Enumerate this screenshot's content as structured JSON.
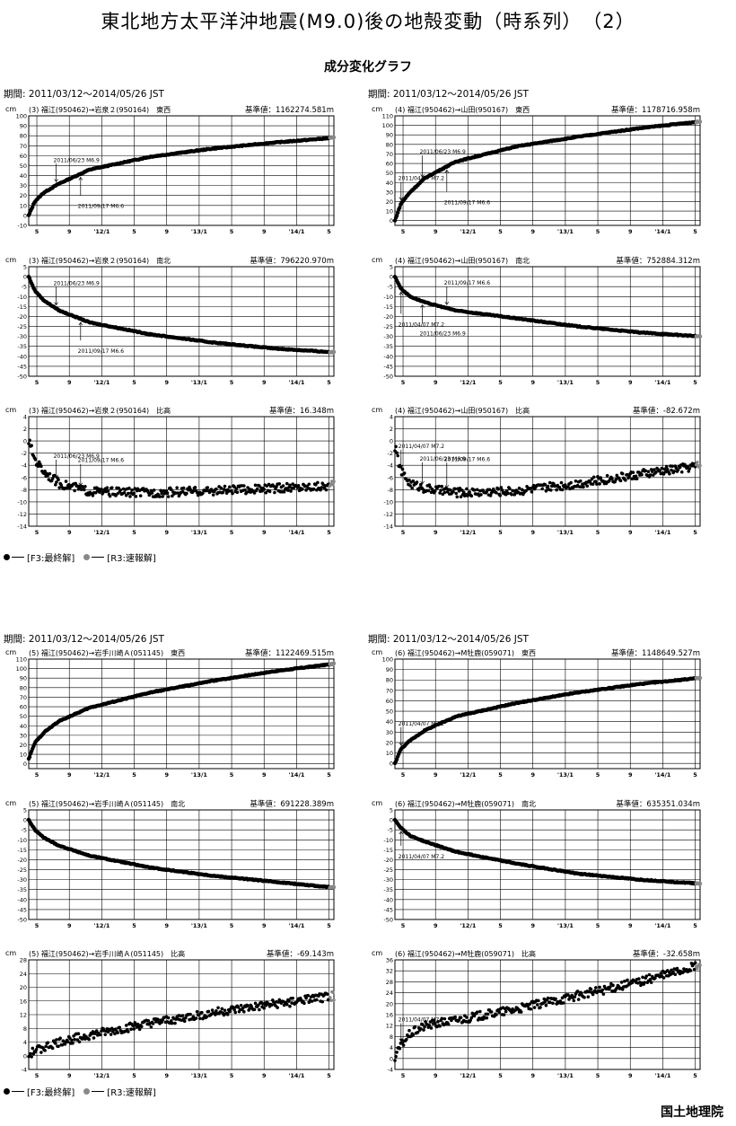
{
  "header": {
    "title": "東北地方太平洋沖地震(M9.0)後の地殻変動（時系列）　（2）",
    "subtitle": "成分変化グラフ"
  },
  "period_text": "期間: 2011/03/12～2014/05/26 JST",
  "legend": {
    "final_label": "[F3:最終解]",
    "rapid_label": "[R3:速報解]",
    "final_color": "#000000",
    "rapid_color": "#888888"
  },
  "footer": {
    "org": "国土地理院"
  },
  "axis_unit": "cm",
  "x_tick_labels": [
    "5",
    "9",
    "'12/1",
    "5",
    "9",
    "'13/1",
    "5",
    "9",
    "'14/1",
    "5"
  ],
  "chart_data": [
    {
      "type": "scatter",
      "group": "(3)",
      "title": "(3) 福江(950462)→岩泉２(950164)　東西",
      "reference": "基準値：1162274.581m",
      "component": "東西",
      "ylim": [
        -10,
        100
      ],
      "yticks": [
        -10,
        0,
        10,
        20,
        30,
        40,
        50,
        60,
        70,
        80,
        90,
        100
      ],
      "series": [
        {
          "x": [
            0,
            0.02,
            0.05,
            0.1,
            0.2,
            0.4,
            0.6,
            0.8,
            1
          ],
          "values": [
            0,
            14,
            23,
            32,
            46,
            59,
            67,
            73,
            78
          ]
        }
      ],
      "annotations": [
        {
          "text": "2011/06/23 M6.9",
          "x": 0.09,
          "dir": "down"
        },
        {
          "text": "2011/09/17 M6.6",
          "x": 0.17,
          "dir": "up"
        }
      ]
    },
    {
      "type": "scatter",
      "group": "(4)",
      "title": "(4) 福江(950462)→山田(950167)　東西",
      "reference": "基準値：1178716.958m",
      "component": "東西",
      "ylim": [
        -5,
        110
      ],
      "yticks": [
        0,
        10,
        20,
        30,
        40,
        50,
        60,
        70,
        80,
        90,
        100,
        110
      ],
      "series": [
        {
          "x": [
            0,
            0.02,
            0.05,
            0.1,
            0.2,
            0.4,
            0.6,
            0.8,
            1
          ],
          "values": [
            0,
            18,
            30,
            45,
            62,
            78,
            88,
            97,
            104
          ]
        }
      ],
      "annotations": [
        {
          "text": "2011/04/07 M7.2",
          "x": 0.02,
          "dir": "down"
        },
        {
          "text": "2011/06/23 M6.9",
          "x": 0.09,
          "dir": "down"
        },
        {
          "text": "2011/09/17 M6.6",
          "x": 0.17,
          "dir": "up"
        }
      ]
    },
    {
      "type": "scatter",
      "group": "(3)",
      "title": "(3) 福江(950462)→岩泉２(950164)　南北",
      "reference": "基準値：796220.970m",
      "component": "南北",
      "ylim": [
        -50,
        5
      ],
      "yticks": [
        -50,
        -45,
        -40,
        -35,
        -30,
        -25,
        -20,
        -15,
        -10,
        -5,
        0,
        5
      ],
      "series": [
        {
          "x": [
            0,
            0.02,
            0.05,
            0.1,
            0.2,
            0.4,
            0.6,
            0.8,
            1
          ],
          "values": [
            0,
            -7,
            -12,
            -17,
            -23,
            -29,
            -33,
            -36,
            -38
          ]
        }
      ],
      "annotations": [
        {
          "text": "2011/06/23 M6.9",
          "x": 0.09,
          "dir": "down"
        },
        {
          "text": "2011/09/17 M6.6",
          "x": 0.17,
          "dir": "up"
        }
      ]
    },
    {
      "type": "scatter",
      "group": "(4)",
      "title": "(4) 福江(950462)→山田(950167)　南北",
      "reference": "基準値：752884.312m",
      "component": "南北",
      "ylim": [
        -50,
        5
      ],
      "yticks": [
        -50,
        -45,
        -40,
        -35,
        -30,
        -25,
        -20,
        -15,
        -10,
        -5,
        0,
        5
      ],
      "series": [
        {
          "x": [
            0,
            0.02,
            0.05,
            0.1,
            0.2,
            0.4,
            0.6,
            0.8,
            1
          ],
          "values": [
            0,
            -6,
            -10,
            -13,
            -17,
            -21,
            -25,
            -28,
            -30
          ]
        }
      ],
      "annotations": [
        {
          "text": "2011/09/17 M6.6",
          "x": 0.17,
          "dir": "down"
        },
        {
          "text": "2011/06/23 M6.9",
          "x": 0.09,
          "dir": "up"
        },
        {
          "text": "2011/04/07 M7.2",
          "x": 0.02,
          "dir": "up"
        }
      ]
    },
    {
      "type": "scatter",
      "group": "(3)",
      "title": "(3) 福江(950462)→岩泉２(950164)　比高",
      "reference": "基準値：16.348m",
      "component": "比高",
      "ylim": [
        -14,
        4
      ],
      "yticks": [
        -14,
        -12,
        -10,
        -8,
        -6,
        -4,
        -2,
        0,
        2,
        4
      ],
      "series": [
        {
          "x": [
            0,
            0.02,
            0.05,
            0.1,
            0.2,
            0.4,
            0.6,
            0.8,
            1
          ],
          "values": [
            0,
            -3,
            -5,
            -7,
            -8.3,
            -8.5,
            -8.2,
            -7.8,
            -7.3
          ]
        }
      ],
      "annotations": [
        {
          "text": "2011/06/23 M6.9",
          "x": 0.09,
          "dir": "down"
        },
        {
          "text": "2011/09/17 M6.6",
          "x": 0.17,
          "dir": "down"
        }
      ]
    },
    {
      "type": "scatter",
      "group": "(4)",
      "title": "(4) 福江(950462)→山田(950167)　比高",
      "reference": "基準値：-82.672m",
      "component": "比高",
      "ylim": [
        -14,
        4
      ],
      "yticks": [
        -14,
        -12,
        -10,
        -8,
        -6,
        -4,
        -2,
        0,
        2,
        4
      ],
      "series": [
        {
          "x": [
            0,
            0.02,
            0.05,
            0.1,
            0.2,
            0.4,
            0.6,
            0.8,
            1
          ],
          "values": [
            -1,
            -5,
            -7,
            -7.8,
            -8.5,
            -8.2,
            -7,
            -5.5,
            -4
          ]
        }
      ],
      "annotations": [
        {
          "text": "2011/04/07 M7.2",
          "x": 0.02,
          "dir": "down"
        },
        {
          "text": "2011/06/23 M6.9",
          "x": 0.09,
          "dir": "down"
        },
        {
          "text": "2011/09/17 M6.6",
          "x": 0.17,
          "dir": "down"
        }
      ]
    },
    {
      "type": "scatter",
      "group": "(5)",
      "title": "(5) 福江(950462)→岩手川崎Ａ(051145)　東西",
      "reference": "基準値：1122469.515m",
      "component": "東西",
      "ylim": [
        -5,
        110
      ],
      "yticks": [
        0,
        10,
        20,
        30,
        40,
        50,
        60,
        70,
        80,
        90,
        100,
        110
      ],
      "series": [
        {
          "x": [
            0,
            0.02,
            0.05,
            0.1,
            0.2,
            0.4,
            0.6,
            0.8,
            1
          ],
          "values": [
            5,
            22,
            33,
            45,
            59,
            75,
            87,
            97,
            105
          ]
        }
      ],
      "annotations": []
    },
    {
      "type": "scatter",
      "group": "(6)",
      "title": "(6) 福江(950462)→M牡鹿(059071)　東西",
      "reference": "基準値：1148649.527m",
      "component": "東西",
      "ylim": [
        -5,
        100
      ],
      "yticks": [
        0,
        10,
        20,
        30,
        40,
        50,
        60,
        70,
        80,
        90,
        100
      ],
      "series": [
        {
          "x": [
            0,
            0.02,
            0.05,
            0.1,
            0.2,
            0.4,
            0.6,
            0.8,
            1
          ],
          "values": [
            0,
            14,
            22,
            32,
            45,
            58,
            68,
            76,
            82
          ]
        }
      ],
      "annotations": [
        {
          "text": "2011/04/07 M7.2",
          "x": 0.02,
          "dir": "down"
        }
      ]
    },
    {
      "type": "scatter",
      "group": "(5)",
      "title": "(5) 福江(950462)→岩手川崎Ａ(051145)　南北",
      "reference": "基準値：691228.389m",
      "component": "南北",
      "ylim": [
        -50,
        5
      ],
      "yticks": [
        -50,
        -45,
        -40,
        -35,
        -30,
        -25,
        -20,
        -15,
        -10,
        -5,
        0,
        5
      ],
      "series": [
        {
          "x": [
            0,
            0.02,
            0.05,
            0.1,
            0.2,
            0.4,
            0.6,
            0.8,
            1
          ],
          "values": [
            0,
            -5,
            -9,
            -13,
            -18,
            -24,
            -28,
            -31,
            -34
          ]
        }
      ],
      "annotations": []
    },
    {
      "type": "scatter",
      "group": "(6)",
      "title": "(6) 福江(950462)→M牡鹿(059071)　南北",
      "reference": "基準値：635351.034m",
      "component": "南北",
      "ylim": [
        -50,
        5
      ],
      "yticks": [
        -50,
        -45,
        -40,
        -35,
        -30,
        -25,
        -20,
        -15,
        -10,
        -5,
        0,
        5
      ],
      "series": [
        {
          "x": [
            0,
            0.02,
            0.05,
            0.1,
            0.2,
            0.4,
            0.6,
            0.8,
            1
          ],
          "values": [
            0,
            -4,
            -8,
            -11,
            -16,
            -22,
            -27,
            -30,
            -32
          ]
        }
      ],
      "annotations": [
        {
          "text": "2011/04/07 M7.2",
          "x": 0.02,
          "dir": "up"
        }
      ]
    },
    {
      "type": "scatter",
      "group": "(5)",
      "title": "(5) 福江(950462)→岩手川崎Ａ(051145)　比高",
      "reference": "基準値：-69.143m",
      "component": "比高",
      "ylim": [
        -4,
        28
      ],
      "yticks": [
        -4,
        0,
        4,
        8,
        12,
        16,
        20,
        24,
        28
      ],
      "series": [
        {
          "x": [
            0,
            0.02,
            0.05,
            0.1,
            0.2,
            0.4,
            0.6,
            0.8,
            1
          ],
          "values": [
            0,
            1.5,
            2.5,
            4,
            6,
            9.5,
            12.5,
            15,
            17.5
          ]
        }
      ],
      "annotations": []
    },
    {
      "type": "scatter",
      "group": "(6)",
      "title": "(6) 福江(950462)→M牡鹿(059071)　比高",
      "reference": "基準値：-32.658m",
      "component": "比高",
      "ylim": [
        -4,
        36
      ],
      "yticks": [
        -4,
        0,
        4,
        8,
        12,
        16,
        20,
        24,
        28,
        32,
        36
      ],
      "series": [
        {
          "x": [
            0,
            0.02,
            0.05,
            0.1,
            0.2,
            0.4,
            0.6,
            0.8,
            1
          ],
          "values": [
            0,
            5,
            9,
            12,
            14,
            18,
            23,
            28,
            34
          ]
        }
      ],
      "annotations": [
        {
          "text": "2011/04/07 M7.2",
          "x": 0.02,
          "dir": "down"
        }
      ]
    }
  ]
}
